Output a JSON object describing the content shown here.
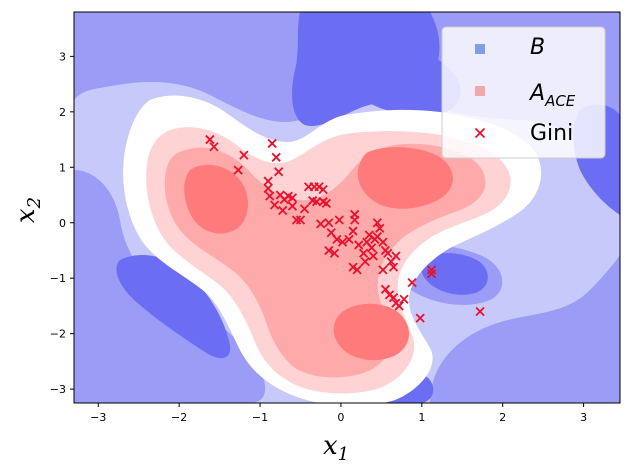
{
  "chart_data": {
    "type": "scatter",
    "title": "",
    "xlabel": "x",
    "xlabel_sub": "1",
    "ylabel": "x",
    "ylabel_sub": "2",
    "xlim": [
      -3.3,
      3.45
    ],
    "ylim": [
      -3.25,
      3.8
    ],
    "xticks": [
      -3,
      -2,
      -1,
      0,
      1,
      2,
      3
    ],
    "yticks": [
      -3,
      -2,
      -1,
      0,
      1,
      2,
      3
    ],
    "xtick_labels": [
      "−3",
      "−2",
      "−1",
      "0",
      "1",
      "2",
      "3"
    ],
    "ytick_labels": [
      "−3",
      "−2",
      "−1",
      "0",
      "1",
      "2",
      "3"
    ],
    "grid": false,
    "legend_position": "top-right",
    "legend": [
      {
        "name": "B",
        "marker": "square",
        "color": "#7f9ee8"
      },
      {
        "name": "A",
        "name_sub": "ACE",
        "marker": "square",
        "color": "#f2a8a8"
      },
      {
        "name": "Gini",
        "marker": "x",
        "color": "#e8112d"
      }
    ],
    "colors": {
      "blue_dark": "#6b6ef2",
      "blue_mid": "#9a9cf6",
      "blue_light": "#c8c9fb",
      "white": "#ffffff",
      "red_light": "#ffd3d3",
      "red_mid": "#ffaaaa",
      "red_dark": "#ff7b7b",
      "marker": "#e8112d"
    },
    "series": [
      {
        "name": "Gini",
        "marker": "x",
        "x": [
          -1.62,
          -1.57,
          -1.2,
          -1.27,
          -0.85,
          -0.8,
          -0.77,
          -0.9,
          -0.9,
          -0.88,
          -0.82,
          -0.75,
          -0.7,
          -0.65,
          -0.72,
          -0.6,
          -0.55,
          -0.5,
          -0.45,
          -0.4,
          -0.33,
          -0.27,
          -0.22,
          -0.35,
          -0.3,
          -0.22,
          -0.18,
          -0.15,
          -0.25,
          -0.12,
          -0.08,
          -0.15,
          -0.05,
          -0.02,
          0.02,
          0.1,
          0.17,
          0.17,
          0.15,
          0.22,
          0.28,
          0.32,
          0.35,
          0.38,
          0.42,
          0.45,
          0.48,
          0.52,
          0.55,
          0.58,
          0.62,
          0.65,
          0.68,
          0.52,
          0.55,
          0.6,
          0.65,
          0.68,
          0.72,
          0.78,
          0.88,
          0.98,
          1.12,
          1.12,
          1.72,
          0.15,
          0.2,
          0.4,
          0.3,
          0.45,
          -0.6
        ],
        "y": [
          1.5,
          1.37,
          1.22,
          0.95,
          1.43,
          1.18,
          0.92,
          0.75,
          0.62,
          0.48,
          0.32,
          0.5,
          0.42,
          0.48,
          0.22,
          0.3,
          0.05,
          0.05,
          0.25,
          0.65,
          0.65,
          0.65,
          0.6,
          0.4,
          0.38,
          0.38,
          0.35,
          -0.0,
          -0.02,
          -0.18,
          -0.55,
          -0.5,
          -0.3,
          0.05,
          -0.35,
          -0.3,
          0.15,
          0.05,
          -0.15,
          -0.4,
          -0.55,
          -0.35,
          -0.22,
          -0.45,
          -0.3,
          -0.25,
          -0.1,
          -0.35,
          -0.5,
          -0.55,
          -0.7,
          -0.8,
          -0.6,
          -0.85,
          -1.2,
          -1.3,
          -1.35,
          -1.45,
          -1.5,
          -1.38,
          -1.08,
          -1.72,
          -0.85,
          -0.92,
          -1.6,
          -0.8,
          -0.85,
          -0.6,
          -0.7,
          0.0,
          0.45
        ]
      }
    ]
  }
}
